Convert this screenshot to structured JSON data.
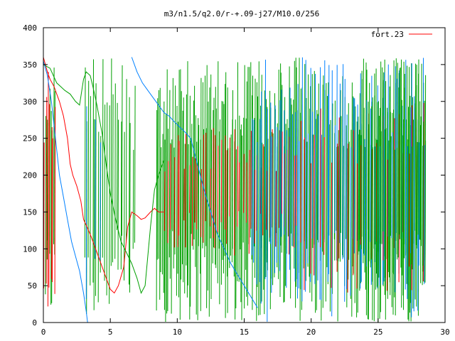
{
  "chart_data": {
    "type": "line",
    "title": "m3/n1.5/q2.0/r-+.09-j27/M10.0/256",
    "xlabel": "",
    "ylabel": "",
    "xlim": [
      0,
      30
    ],
    "ylim": [
      0,
      400
    ],
    "xticks": [
      0,
      5,
      10,
      15,
      20,
      25,
      30
    ],
    "yticks": [
      0,
      50,
      100,
      150,
      200,
      250,
      300,
      350,
      400
    ],
    "grid": false,
    "legend_position": "top-right",
    "legend": [
      {
        "label": "fort.23",
        "color": "#ff0000"
      }
    ],
    "series": [
      {
        "name": "fort.23",
        "color": "#ff0000",
        "x": [
          0.0,
          0.3,
          0.5,
          0.8,
          1.0,
          1.2,
          1.5,
          1.8,
          2.0,
          2.2,
          2.5,
          2.8,
          3.0,
          3.3,
          3.6,
          4.0,
          4.3,
          4.6,
          5.0,
          5.3,
          5.6,
          6.0,
          6.3,
          6.6,
          7.0,
          7.3,
          7.6,
          8.0,
          8.3,
          8.6,
          9.0
        ],
        "y": [
          360,
          340,
          330,
          320,
          310,
          300,
          280,
          250,
          215,
          200,
          185,
          165,
          140,
          128,
          115,
          95,
          80,
          65,
          45,
          40,
          50,
          75,
          130,
          150,
          145,
          140,
          142,
          150,
          155,
          150,
          150
        ]
      },
      {
        "name": "",
        "color": "#00a000",
        "x": [
          0.0,
          0.5,
          1.0,
          1.3,
          1.6,
          2.0,
          2.4,
          2.7,
          3.0,
          3.2,
          3.5,
          3.7,
          4.0,
          4.4,
          4.8,
          5.0,
          5.4,
          5.8,
          6.2,
          6.6,
          7.0,
          7.3,
          7.6,
          8.0,
          8.3,
          8.6,
          9.0
        ],
        "y": [
          350,
          345,
          325,
          320,
          315,
          310,
          300,
          295,
          330,
          340,
          335,
          320,
          295,
          255,
          200,
          175,
          140,
          110,
          95,
          80,
          60,
          40,
          50,
          130,
          180,
          200,
          220
        ]
      },
      {
        "name": "",
        "color": "#0080ff",
        "x": [
          0.0,
          0.3,
          0.6,
          0.9,
          1.2,
          1.5,
          1.8,
          2.1,
          2.4,
          2.7,
          3.0,
          3.2,
          3.3
        ],
        "y": [
          355,
          335,
          300,
          250,
          200,
          170,
          140,
          110,
          90,
          70,
          40,
          15,
          0
        ]
      },
      {
        "name": "",
        "color": "#0080ff",
        "x": [
          6.6,
          7.0,
          7.4,
          7.8,
          8.2,
          8.6,
          9.0,
          9.4,
          9.8,
          10.2,
          10.6,
          11.0
        ],
        "y": [
          360,
          340,
          325,
          315,
          305,
          295,
          285,
          280,
          272,
          265,
          258,
          250
        ]
      },
      {
        "name": "",
        "color": "#0080ff",
        "x": [
          11.0,
          11.5,
          12.0,
          12.5,
          13.0,
          13.5,
          14.0,
          14.5,
          15.0,
          15.5,
          16.0
        ],
        "y": [
          250,
          215,
          180,
          150,
          120,
          100,
          80,
          65,
          50,
          35,
          20
        ]
      }
    ],
    "noise_regions": [
      {
        "color": "#00a000",
        "x_start": 0.1,
        "x_end": 0.9,
        "y_min": 0,
        "y_max": 360,
        "count": 8
      },
      {
        "color": "#ff0000",
        "x_start": 0.0,
        "x_end": 0.9,
        "y_min": 0,
        "y_max": 360,
        "count": 7
      },
      {
        "color": "#00a000",
        "x_start": 3.0,
        "x_end": 6.9,
        "y_min": 0,
        "y_max": 360,
        "count": 26
      },
      {
        "color": "#0080ff",
        "x_start": 3.2,
        "x_end": 4.5,
        "y_min": 0,
        "y_max": 360,
        "count": 3
      },
      {
        "color": "#00a000",
        "x_start": 8.4,
        "x_end": 28.6,
        "y_min": 0,
        "y_max": 360,
        "count": 230
      },
      {
        "color": "#ff0000",
        "x_start": 9.0,
        "x_end": 19.0,
        "y_min": 90,
        "y_max": 265,
        "count": 45
      },
      {
        "color": "#0080ff",
        "x_start": 15.5,
        "x_end": 28.6,
        "y_min": 0,
        "y_max": 360,
        "count": 70
      },
      {
        "color": "#ff0000",
        "x_start": 19.0,
        "x_end": 28.6,
        "y_min": 40,
        "y_max": 300,
        "count": 25
      },
      {
        "color": "#00a000",
        "x_start": 23.5,
        "x_end": 28.6,
        "y_min": 0,
        "y_max": 360,
        "count": 40
      }
    ]
  }
}
